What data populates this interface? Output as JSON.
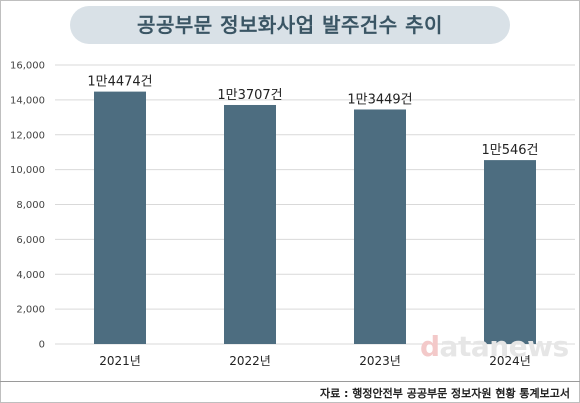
{
  "chart_data": {
    "type": "bar",
    "title": "공공부문 정보화사업 발주건수 추이",
    "categories": [
      "2021년",
      "2022년",
      "2023년",
      "2024년"
    ],
    "values": [
      14474,
      13707,
      13449,
      10546
    ],
    "data_labels": [
      "1만4474건",
      "1만3707건",
      "1만3449건",
      "1만546건"
    ],
    "ylim": [
      0,
      16000
    ],
    "yticks": [
      0,
      2000,
      4000,
      6000,
      8000,
      10000,
      12000,
      14000,
      16000
    ],
    "ytick_labels": [
      "0",
      "2,000",
      "4,000",
      "6,000",
      "8,000",
      "10,000",
      "12,000",
      "14,000",
      "16,000"
    ],
    "grid": true,
    "bar_color": "#4d6d80",
    "xlabel": "",
    "ylabel": ""
  },
  "watermark": {
    "prefix": "d",
    "rest": "atanews"
  },
  "source_note": "자료 : 행정안전부 공공부문 정보자원 현황 통계보고서",
  "colors": {
    "title_bg": "#d9e1e7",
    "title_text": "#3a5564",
    "grid": "#d9d9d9"
  }
}
